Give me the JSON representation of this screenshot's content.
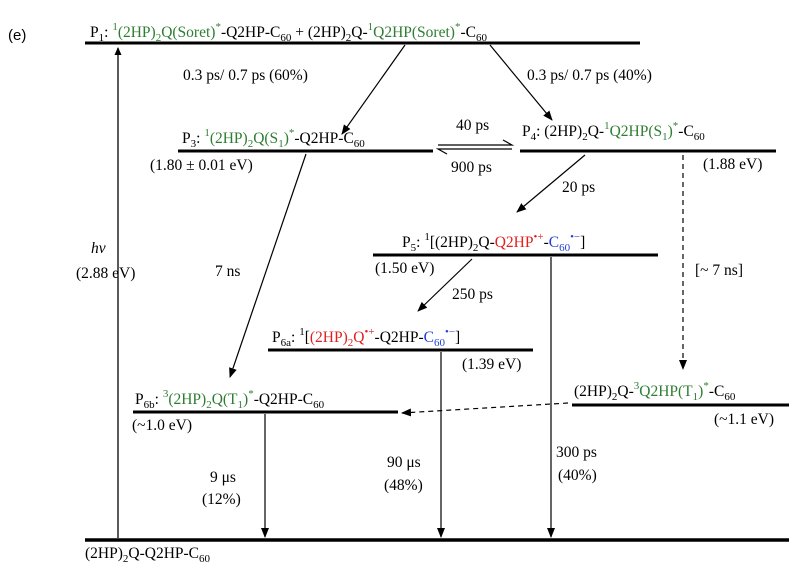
{
  "panel_label": "(e)",
  "colors": {
    "green": "#2e7d32",
    "red": "#e02020",
    "blue": "#1f3fd6",
    "black": "#000000"
  },
  "states": {
    "p1": {
      "label": "P",
      "sub": "1",
      "colon": ": ",
      "sup_a": "1",
      "text_a": "(2HP)",
      "sub_a": "2",
      "text_b": "Q(Soret)",
      "sup_b": "*",
      "text_c": "-Q2HP-C",
      "sub_c": "60",
      "text_d": " + (2HP)",
      "sub_d": "2",
      "text_e": "Q-",
      "sup_e": "1",
      "text_f": "Q2HP(Soret)",
      "sup_f": "*",
      "text_g": "-C",
      "sub_g": "60"
    },
    "p3": {
      "label": "P",
      "sub": "3",
      "colon": ": ",
      "sup_a": "1",
      "text_a": "(2HP)",
      "sub_a": "2",
      "text_b": "Q(S",
      "sub_b": "1",
      "text_b2": ")",
      "sup_b": "*",
      "text_c": "-Q2HP-C",
      "sub_c": "60",
      "energy": "(1.80 ± 0.01 eV)"
    },
    "p4": {
      "label": "P",
      "sub": "4",
      "colon": ": (2HP)",
      "sub_a": "2",
      "text_a": "Q-",
      "sup_b": "1",
      "text_b": "Q2HP(S",
      "sub_b": "1",
      "text_b2": ")",
      "sup_c": "*",
      "text_c": "-C",
      "sub_c": "60",
      "energy": "(1.88 eV)"
    },
    "p5": {
      "label": "P",
      "sub": "5",
      "colon": ": ",
      "sup_a": "1",
      "text_a": "[(2HP)",
      "sub_a": "2",
      "text_b": "Q-",
      "text_c": "Q2HP",
      "sup_c": "•+",
      "text_d": "-",
      "text_e": "C",
      "sub_e": "60",
      "sup_e": "•−",
      "text_f": "]",
      "energy": "(1.50 eV)"
    },
    "p6a": {
      "label": "P",
      "sub": "6a",
      "colon": ": ",
      "sup_a": "1",
      "text_a": "[",
      "text_b": "(2HP)",
      "sub_b": "2",
      "text_b2": "Q",
      "sup_b": "•+",
      "text_c": "-Q2HP-",
      "text_d": "C",
      "sub_d": "60",
      "sup_d": "•−",
      "text_e": "]",
      "energy": "(1.39 eV)"
    },
    "p6b": {
      "label": "P",
      "sub": "6b",
      "colon": ": ",
      "sup_a": "3",
      "text_a": "(2HP)",
      "sub_a": "2",
      "text_b": "Q(T",
      "sub_b": "1",
      "text_b2": ")",
      "sup_b": "*",
      "text_c": "-Q2HP-C",
      "sub_c": "60",
      "energy": "(~1.0 eV)"
    },
    "t": {
      "text_a": "(2HP)",
      "sub_a": "2",
      "text_b": "Q-",
      "sup_b": "3",
      "text_c": "Q2HP(T",
      "sub_c": "1",
      "text_c2": ")",
      "sup_c": "*",
      "text_d": "-C",
      "sub_d": "60",
      "energy": "(~1.1 eV)"
    },
    "ground": {
      "text_a": "(2HP)",
      "sub_a": "2",
      "text_b": "Q-Q2HP-C",
      "sub_b": "60"
    }
  },
  "transitions": {
    "p1_to_p3": "0.3 ps/ 0.7 ps (60%)",
    "p1_to_p4": "0.3 ps/ 0.7 ps (40%)",
    "p3_to_p4": "40 ps",
    "p4_to_p3": "900 ps",
    "p4_to_p5": "20 ps",
    "p5_to_p6a": "250 ps",
    "p3_to_p6b": "7 ns",
    "p4_to_t": "[~ 7 ns]",
    "p6b_to_ground_a": "9 μs",
    "p6b_to_ground_b": "(12%)",
    "p6a_to_ground_a": "90 μs",
    "p6a_to_ground_b": "(48%)",
    "p5_to_ground_a": "300 ps",
    "p5_to_ground_b": "(40%)",
    "excitation_a": "hν",
    "excitation_b": "(2.88 eV)"
  }
}
